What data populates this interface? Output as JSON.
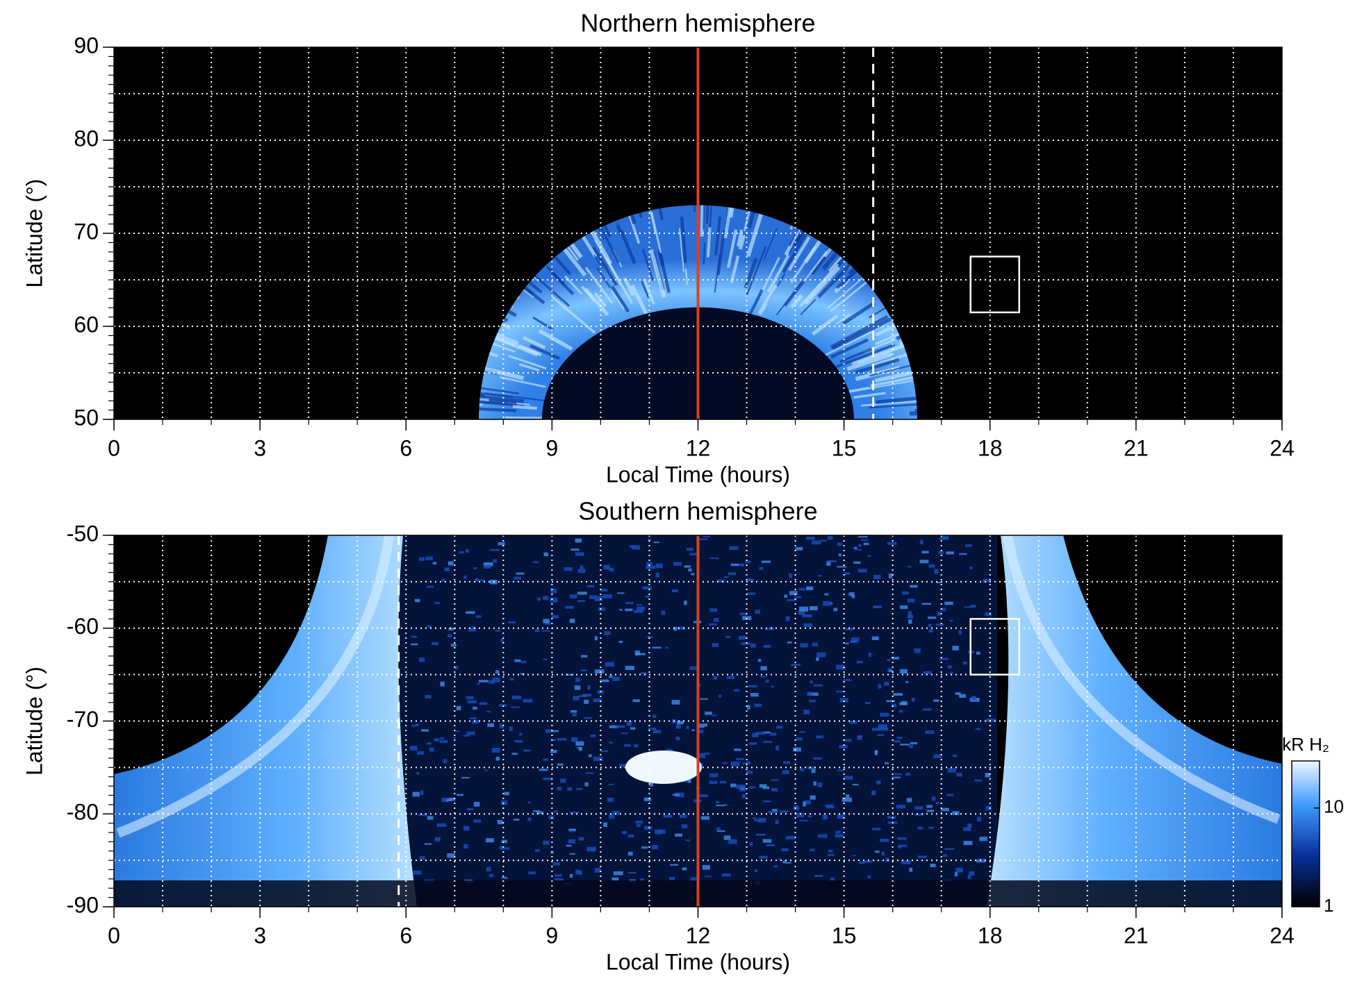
{
  "chart_data": [
    {
      "type": "heatmap",
      "title": "Northern hemisphere",
      "xlabel": "Local Time (hours)",
      "ylabel": "Latitude (°)",
      "xlim": [
        0,
        24
      ],
      "xticks": [
        0,
        3,
        6,
        9,
        12,
        15,
        18,
        21,
        24
      ],
      "ylim": [
        50,
        90
      ],
      "yticks": [
        50,
        60,
        70,
        80,
        90
      ],
      "grid": true,
      "grid_x_step": 1,
      "grid_y_step": 5,
      "minor_y_step": 1,
      "vlines": [
        {
          "x": 12,
          "color": "#d9411e",
          "style": "solid"
        },
        {
          "x": 15.6,
          "color": "#ffffff",
          "style": "dashed"
        }
      ],
      "box": {
        "x": [
          17.6,
          18.6
        ],
        "y": [
          61.5,
          67.5
        ]
      }
    },
    {
      "type": "heatmap",
      "title": "Southern hemisphere",
      "xlabel": "Local Time (hours)",
      "ylabel": "Latitude (°)",
      "xlim": [
        0,
        24
      ],
      "xticks": [
        0,
        3,
        6,
        9,
        12,
        15,
        18,
        21,
        24
      ],
      "ylim": [
        -90,
        -50
      ],
      "yticks": [
        -90,
        -80,
        -70,
        -60,
        -50
      ],
      "grid": true,
      "grid_x_step": 1,
      "grid_y_step": 5,
      "minor_y_step": 1,
      "vlines": [
        {
          "x": 12,
          "color": "#d9411e",
          "style": "solid"
        },
        {
          "x": 5.85,
          "color": "#ffffff",
          "style": "dashed"
        }
      ],
      "box": {
        "x": [
          17.6,
          18.6
        ],
        "y": [
          -65,
          -59
        ]
      },
      "colorbar": {
        "label": "kR H₂",
        "scale": "log",
        "lim": [
          1,
          30
        ],
        "ticks": [
          1,
          10
        ]
      }
    }
  ]
}
